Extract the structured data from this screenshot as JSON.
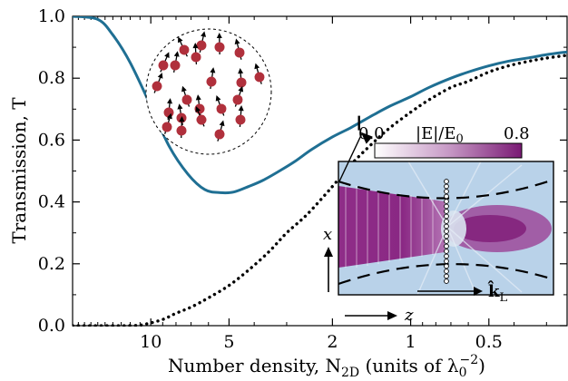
{
  "chart_data": {
    "type": "line",
    "xlabel": "Number density, N",
    "xlabel_sub": "2D",
    "xlabel_units": " (units of λ",
    "xlabel_units_sub": "0",
    "xlabel_units_sup": "−2",
    "xlabel_units_close": ")",
    "ylabel": "Transmission, T",
    "xscale": "log",
    "xlim": [
      20,
      0.25
    ],
    "ylim": [
      0.0,
      1.0
    ],
    "x_ticks": [
      {
        "value": 10,
        "label": "10"
      },
      {
        "value": 5,
        "label": "5"
      },
      {
        "value": 2,
        "label": "2"
      },
      {
        "value": 1,
        "label": "1"
      },
      {
        "value": 0.5,
        "label": "0.5"
      }
    ],
    "y_ticks": [
      {
        "value": 0.0,
        "label": "0.0"
      },
      {
        "value": 0.2,
        "label": "0.2"
      },
      {
        "value": 0.4,
        "label": "0.4"
      },
      {
        "value": 0.6,
        "label": "0.6"
      },
      {
        "value": 0.8,
        "label": "0.8"
      },
      {
        "value": 1.0,
        "label": "1.0"
      }
    ],
    "series": [
      {
        "style": "solid",
        "color": "#1f6f93",
        "x": [
          20,
          16,
          14,
          12,
          10,
          8.5,
          7.2,
          6.2,
          5.4,
          4.8,
          4.2,
          3.7,
          3.2,
          2.8,
          2.4,
          2.0,
          1.7,
          1.4,
          1.2,
          1.0,
          0.85,
          0.7,
          0.6,
          0.5,
          0.42,
          0.35,
          0.3,
          0.25
        ],
        "y": [
          1.0,
          0.99,
          0.94,
          0.85,
          0.71,
          0.58,
          0.49,
          0.44,
          0.43,
          0.432,
          0.45,
          0.47,
          0.5,
          0.53,
          0.57,
          0.61,
          0.64,
          0.68,
          0.71,
          0.74,
          0.77,
          0.8,
          0.82,
          0.84,
          0.855,
          0.866,
          0.876,
          0.885
        ]
      },
      {
        "style": "dotted",
        "color": "#000000",
        "x": [
          20,
          12,
          10.5,
          9,
          8,
          7,
          6,
          5,
          4.2,
          3.5,
          3.0,
          2.5,
          2.0,
          1.7,
          1.4,
          1.2,
          1.0,
          0.85,
          0.7,
          0.6,
          0.5,
          0.42,
          0.35,
          0.3,
          0.25
        ],
        "y": [
          0.0,
          0.0,
          0.005,
          0.02,
          0.04,
          0.06,
          0.09,
          0.13,
          0.18,
          0.24,
          0.3,
          0.36,
          0.45,
          0.52,
          0.59,
          0.64,
          0.69,
          0.73,
          0.77,
          0.79,
          0.82,
          0.84,
          0.855,
          0.865,
          0.874
        ]
      }
    ],
    "marker_at_x": 1.58,
    "inset": {
      "colorbar_label": "|E|/E",
      "colorbar_label_sub": "0",
      "colorbar_min": "0.0",
      "colorbar_max": "0.8",
      "axis_x": "x",
      "axis_z": "z",
      "k_label": "k̂",
      "k_label_sub": "L",
      "color_low": "#ffffff",
      "color_high": "#7a1a74"
    },
    "circle_inset": {
      "atom_color": "#b0303c"
    }
  }
}
